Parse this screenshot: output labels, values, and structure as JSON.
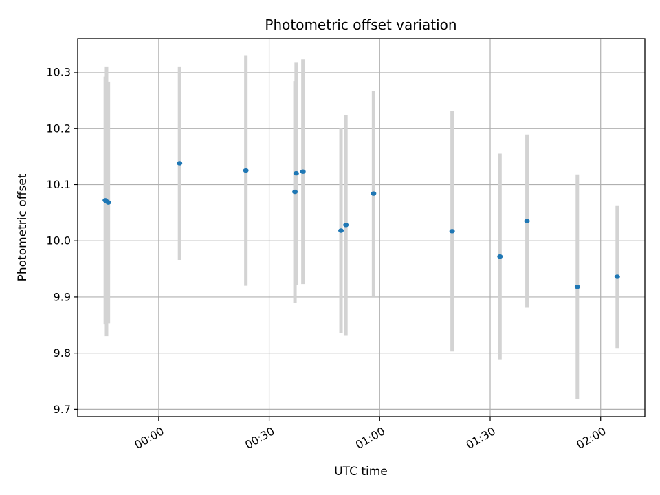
{
  "chart_data": {
    "type": "scatter",
    "title": "Photometric offset variation",
    "xlabel": "UTC time",
    "ylabel": "Photometric offset",
    "grid": true,
    "x_unit": "HH:MM",
    "xlim": [
      "23:38",
      "02:12"
    ],
    "ylim": [
      9.687,
      10.36
    ],
    "x_ticks": [
      "00:00",
      "00:30",
      "01:00",
      "01:30",
      "02:00"
    ],
    "y_ticks": [
      "9.7",
      "9.8",
      "9.9",
      "10.0",
      "10.1",
      "10.2",
      "10.3"
    ],
    "colors": {
      "point": "#1f77b4",
      "errorbar": "#d3d3d3",
      "grid": "#b0b0b0"
    },
    "series": [
      {
        "points": [
          {
            "x": "23:45:30",
            "y": 10.072,
            "yerr": 0.22
          },
          {
            "x": "23:45:50",
            "y": 10.07,
            "yerr": 0.24
          },
          {
            "x": "23:46:20",
            "y": 10.068,
            "yerr": 0.215
          },
          {
            "x": "00:05:40",
            "y": 10.138,
            "yerr": 0.172
          },
          {
            "x": "00:23:40",
            "y": 10.125,
            "yerr": 0.205
          },
          {
            "x": "00:37:00",
            "y": 10.087,
            "yerr": 0.197
          },
          {
            "x": "00:37:20",
            "y": 10.12,
            "yerr": 0.198
          },
          {
            "x": "00:39:10",
            "y": 10.123,
            "yerr": 0.2
          },
          {
            "x": "00:49:30",
            "y": 10.018,
            "yerr": 0.183
          },
          {
            "x": "00:50:50",
            "y": 10.028,
            "yerr": 0.196
          },
          {
            "x": "00:58:20",
            "y": 10.084,
            "yerr": 0.182
          },
          {
            "x": "01:19:40",
            "y": 10.017,
            "yerr": 0.214
          },
          {
            "x": "01:32:40",
            "y": 9.972,
            "yerr": 0.183
          },
          {
            "x": "01:40:00",
            "y": 10.035,
            "yerr": 0.154
          },
          {
            "x": "01:53:40",
            "y": 9.918,
            "yerr": 0.2
          },
          {
            "x": "02:04:30",
            "y": 9.936,
            "yerr": 0.127
          }
        ]
      }
    ]
  }
}
